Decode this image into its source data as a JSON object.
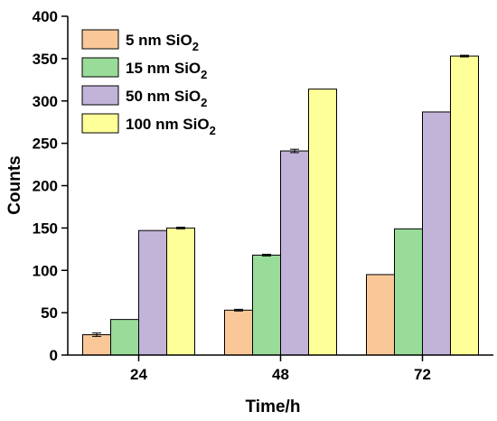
{
  "chart_data": {
    "type": "bar",
    "xlabel": "Time/h",
    "ylabel": "Counts",
    "categories": [
      "24",
      "48",
      "72"
    ],
    "ylim": [
      0,
      400
    ],
    "yticks": [
      0,
      50,
      100,
      150,
      200,
      250,
      300,
      350,
      400
    ],
    "grid": false,
    "legend_position": "top-left",
    "series": [
      {
        "name": "5 nm SiO",
        "subscript": "2",
        "color": "#fac898",
        "values": [
          24,
          53,
          95
        ],
        "errors": [
          2,
          1,
          0
        ]
      },
      {
        "name": "15 nm SiO",
        "subscript": "2",
        "color": "#99db99",
        "values": [
          42,
          118,
          149
        ],
        "errors": [
          0,
          1,
          0
        ]
      },
      {
        "name": "50 nm SiO",
        "subscript": "2",
        "color": "#c2b3d9",
        "values": [
          147,
          241,
          287
        ],
        "errors": [
          0,
          2,
          0
        ]
      },
      {
        "name": "100 nm SiO",
        "subscript": "2",
        "color": "#ffff99",
        "values": [
          150,
          314,
          353
        ],
        "errors": [
          1,
          0,
          1
        ]
      }
    ]
  }
}
